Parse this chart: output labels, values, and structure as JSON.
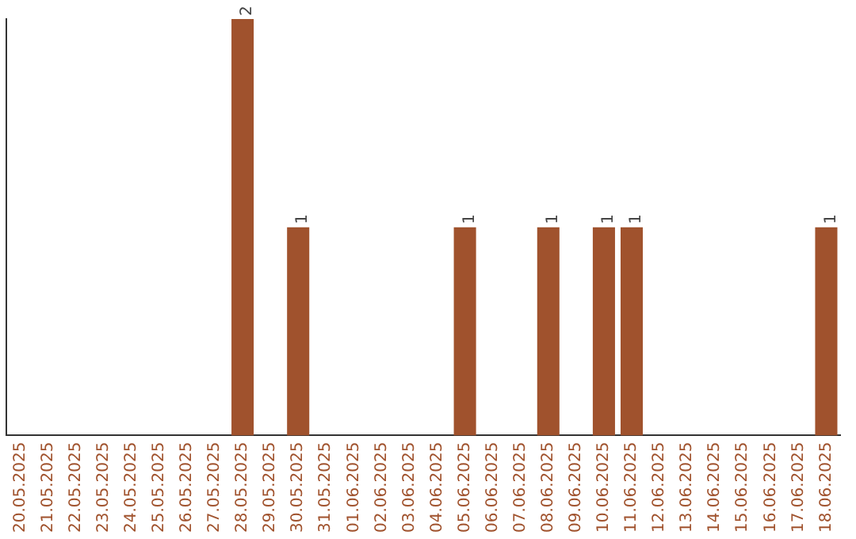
{
  "chart_data": {
    "type": "bar",
    "categories": [
      "20.05.2025",
      "21.05.2025",
      "22.05.2025",
      "23.05.2025",
      "24.05.2025",
      "25.05.2025",
      "26.05.2025",
      "27.05.2025",
      "28.05.2025",
      "29.05.2025",
      "30.05.2025",
      "31.05.2025",
      "01.06.2025",
      "02.06.2025",
      "03.06.2025",
      "04.06.2025",
      "05.06.2025",
      "06.06.2025",
      "07.06.2025",
      "08.06.2025",
      "09.06.2025",
      "10.06.2025",
      "11.06.2025",
      "12.06.2025",
      "13.06.2025",
      "14.06.2025",
      "15.06.2025",
      "16.06.2025",
      "17.06.2025",
      "18.06.2025"
    ],
    "values": [
      0,
      0,
      0,
      0,
      0,
      0,
      0,
      0,
      2,
      0,
      1,
      0,
      0,
      0,
      0,
      0,
      1,
      0,
      0,
      1,
      0,
      1,
      1,
      0,
      0,
      0,
      0,
      0,
      0,
      1
    ],
    "value_labels": [
      null,
      null,
      null,
      null,
      null,
      null,
      null,
      null,
      "2",
      null,
      "1",
      null,
      null,
      null,
      null,
      null,
      "1",
      null,
      null,
      "1",
      null,
      "1",
      "1",
      null,
      null,
      null,
      null,
      null,
      null,
      "1"
    ],
    "color": "#a0522d",
    "tick_labels": "x",
    "grid": false,
    "legend": false
  }
}
